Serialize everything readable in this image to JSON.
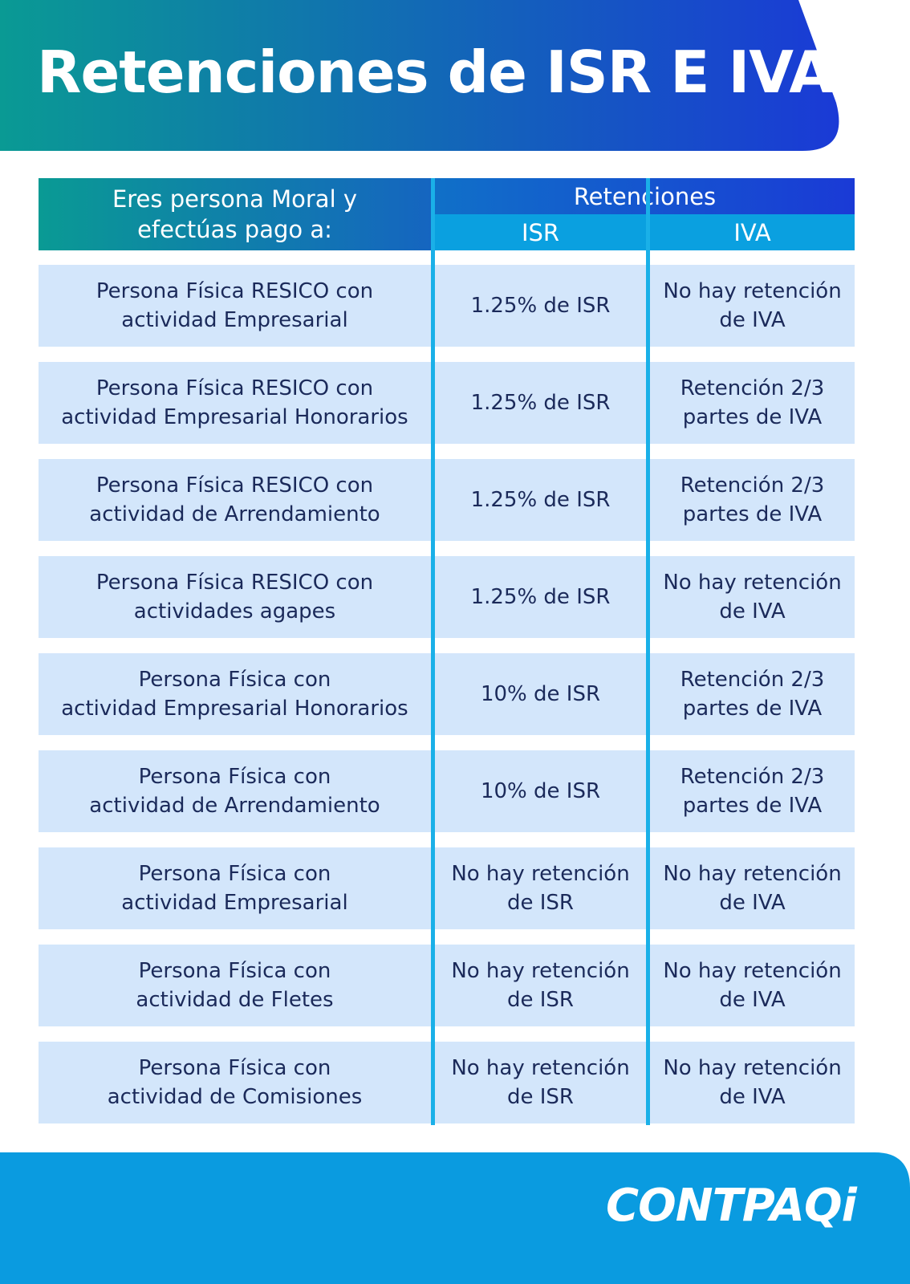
{
  "header": {
    "title": "Retenciones de ISR E IVA"
  },
  "table": {
    "left_header": "Eres persona Moral y\nefectúas pago a:",
    "group_header": "Retenciones",
    "columns": [
      "ISR",
      "IVA"
    ],
    "rows": [
      [
        "Persona Física RESICO con\nactividad Empresarial",
        "1.25% de ISR",
        "No hay retención\nde IVA"
      ],
      [
        "Persona Física RESICO con\nactividad Empresarial Honorarios",
        "1.25% de ISR",
        "Retención 2/3\npartes de IVA"
      ],
      [
        "Persona Física RESICO con\nactividad de Arrendamiento",
        "1.25% de ISR",
        "Retención 2/3\npartes de IVA"
      ],
      [
        "Persona Física RESICO con\nactividades agapes",
        "1.25% de ISR",
        "No hay retención\nde IVA"
      ],
      [
        "Persona Física con\nactividad Empresarial Honorarios",
        "10% de ISR",
        "Retención 2/3\npartes de IVA"
      ],
      [
        "Persona Física con\nactividad de Arrendamiento",
        "10% de ISR",
        "Retención 2/3\npartes de IVA"
      ],
      [
        "Persona Física con\nactividad Empresarial",
        "No hay retención\nde ISR",
        "No hay retención\nde IVA"
      ],
      [
        "Persona Física con\nactividad de Fletes",
        "No hay retención\nde ISR",
        "No hay retención\nde IVA"
      ],
      [
        "Persona Física con\nactividad de Comisiones",
        "No hay retención\nde ISR",
        "No hay retención\nde IVA"
      ]
    ]
  },
  "footer": {
    "logo": "CONTPAQi"
  }
}
